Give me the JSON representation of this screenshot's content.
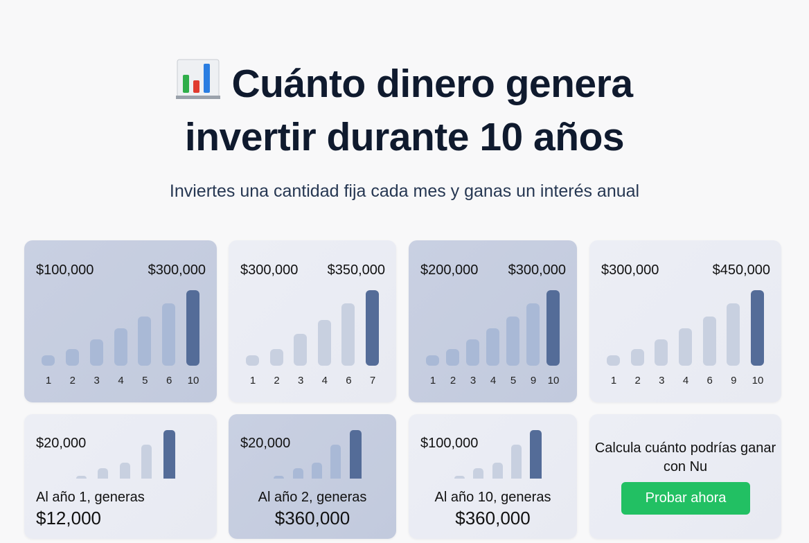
{
  "header": {
    "title_line1": "Cuánto dinero genera",
    "title_line2": "invertir durante 10 años",
    "subtitle": "Inviertes una cantidad fija cada mes y ganas un interés anual",
    "icon": "bar-chart-emoji"
  },
  "colors": {
    "dark_bar": "#546c98",
    "light_bar_dark_card": "#a9b9d6",
    "light_bar_light_card": "#c8d0e0",
    "cta": "#22c063"
  },
  "top_cards": [
    {
      "style": "dark",
      "left_label": "$100,000",
      "right_label": "$300,000",
      "x_labels": [
        "1",
        "2",
        "3",
        "4",
        "5",
        "6",
        "10"
      ],
      "bar_levels": [
        14,
        22,
        35,
        50,
        65,
        83,
        100
      ]
    },
    {
      "style": "light",
      "left_label": "$300,000",
      "right_label": "$350,000",
      "x_labels": [
        "1",
        "2",
        "3",
        "4",
        "6",
        "7"
      ],
      "bar_levels": [
        14,
        22,
        42,
        61,
        83,
        100
      ]
    },
    {
      "style": "dark",
      "left_label": "$200,000",
      "right_label": "$300,000",
      "x_labels": [
        "1",
        "2",
        "3",
        "4",
        "5",
        "9",
        "10"
      ],
      "bar_levels": [
        14,
        22,
        35,
        50,
        65,
        83,
        100
      ]
    },
    {
      "style": "light",
      "left_label": "$300,000",
      "right_label": "$450,000",
      "x_labels": [
        "1",
        "2",
        "3",
        "4",
        "6",
        "9",
        "10"
      ],
      "bar_levels": [
        14,
        22,
        35,
        50,
        65,
        83,
        100
      ]
    }
  ],
  "bottom_cards": [
    {
      "style": "light",
      "label": "$20,000",
      "caption": "Al año 1, generas",
      "amount": "$12,000",
      "bar_levels": [
        6,
        22,
        33,
        70,
        100
      ]
    },
    {
      "style": "dark",
      "label": "$20,000",
      "caption": "Al año 2, generas",
      "amount": "$360,000",
      "bar_levels": [
        6,
        22,
        33,
        70,
        100
      ]
    },
    {
      "style": "light",
      "label": "$100,000",
      "caption": "Al año 10, generas",
      "amount": "$360,000",
      "bar_levels": [
        6,
        22,
        33,
        70,
        100
      ]
    }
  ],
  "cta": {
    "text": "Calcula cuánto podrías ganar con Nu",
    "button": "Probar ahora"
  }
}
